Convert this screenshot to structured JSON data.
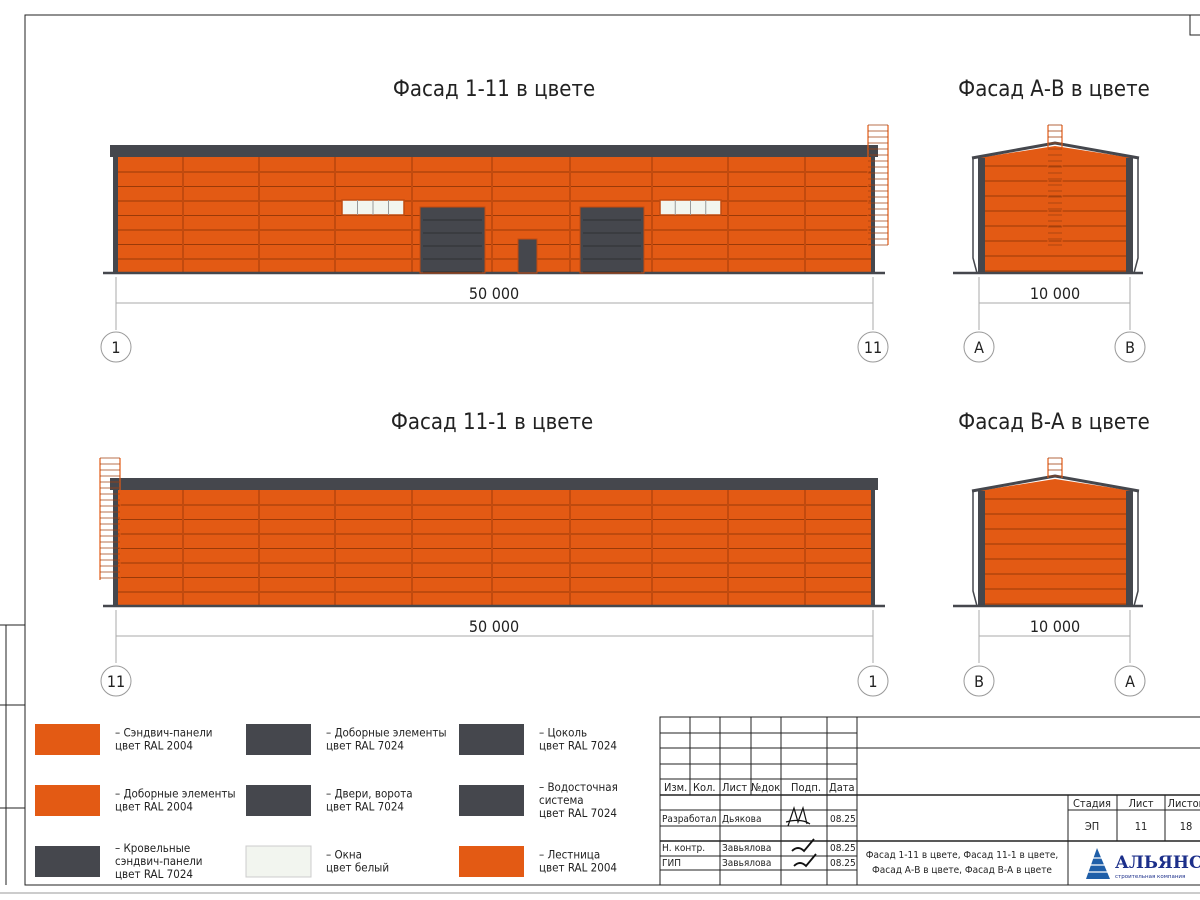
{
  "colors": {
    "orange": "#e35a14",
    "dark": "#45474d",
    "white": "#f2f5ef",
    "panel_line": "#9a3a08"
  },
  "facades": [
    {
      "id": "f1",
      "title": "Фасад 1-11 в цвете",
      "dimension": "50 000",
      "axis_left": "1",
      "axis_right": "11"
    },
    {
      "id": "f2",
      "title": "Фасад 11-1 в цвете",
      "dimension": "50 000",
      "axis_left": "11",
      "axis_right": "1"
    },
    {
      "id": "f3",
      "title": "Фасад А-В в цвете",
      "dimension": "10 000",
      "axis_left": "А",
      "axis_right": "В"
    },
    {
      "id": "f4",
      "title": "Фасад В-А в цвете",
      "dimension": "10 000",
      "axis_left": "В",
      "axis_right": "А"
    }
  ],
  "legend": [
    {
      "color": "orange",
      "lines": [
        "– Сэндвич-панели",
        "цвет RAL 2004"
      ]
    },
    {
      "color": "dark",
      "lines": [
        "– Доборные элементы",
        "цвет RAL 7024"
      ]
    },
    {
      "color": "dark",
      "lines": [
        "– Цоколь",
        "цвет RAL 7024"
      ]
    },
    {
      "color": "orange",
      "lines": [
        "– Доборные элементы",
        "цвет RAL 2004"
      ]
    },
    {
      "color": "dark",
      "lines": [
        "– Двери, ворота",
        "цвет RAL 7024"
      ]
    },
    {
      "color": "dark",
      "lines": [
        "– Водосточная",
        "система",
        "цвет RAL 7024"
      ]
    },
    {
      "color": "dark",
      "lines": [
        "– Кровельные",
        "сэндвич-панели",
        "цвет RAL 7024"
      ]
    },
    {
      "color": "white",
      "lines": [
        "– Окна",
        "цвет белый"
      ]
    },
    {
      "color": "orange",
      "lines": [
        "– Лестница",
        "цвет RAL 2004"
      ]
    }
  ],
  "title_block": {
    "headers": [
      "Изм.",
      "Кол.",
      "Лист",
      "№док",
      "Подп.",
      "Дата"
    ],
    "rows": [
      {
        "role": "Разработал",
        "name": "Дьякова",
        "date": "08.25"
      },
      {
        "role": "Н. контр.",
        "name": "Завьялова",
        "date": "08.25"
      },
      {
        "role": "ГИП",
        "name": "Завьялова",
        "date": "08.25"
      }
    ],
    "stage_header": "Стадия",
    "sheet_header": "Лист",
    "sheets_header": "Листов",
    "stage": "ЭП",
    "sheet": "11",
    "sheets": "18",
    "sheet_title_1": "Фасад 1-11 в цвете, Фасад 11-1 в цвете,",
    "sheet_title_2": "Фасад А-В в цвете, Фасад В-А в цвете",
    "logo_name": "АЛЬЯНС",
    "logo_sub": "строительная компания"
  }
}
